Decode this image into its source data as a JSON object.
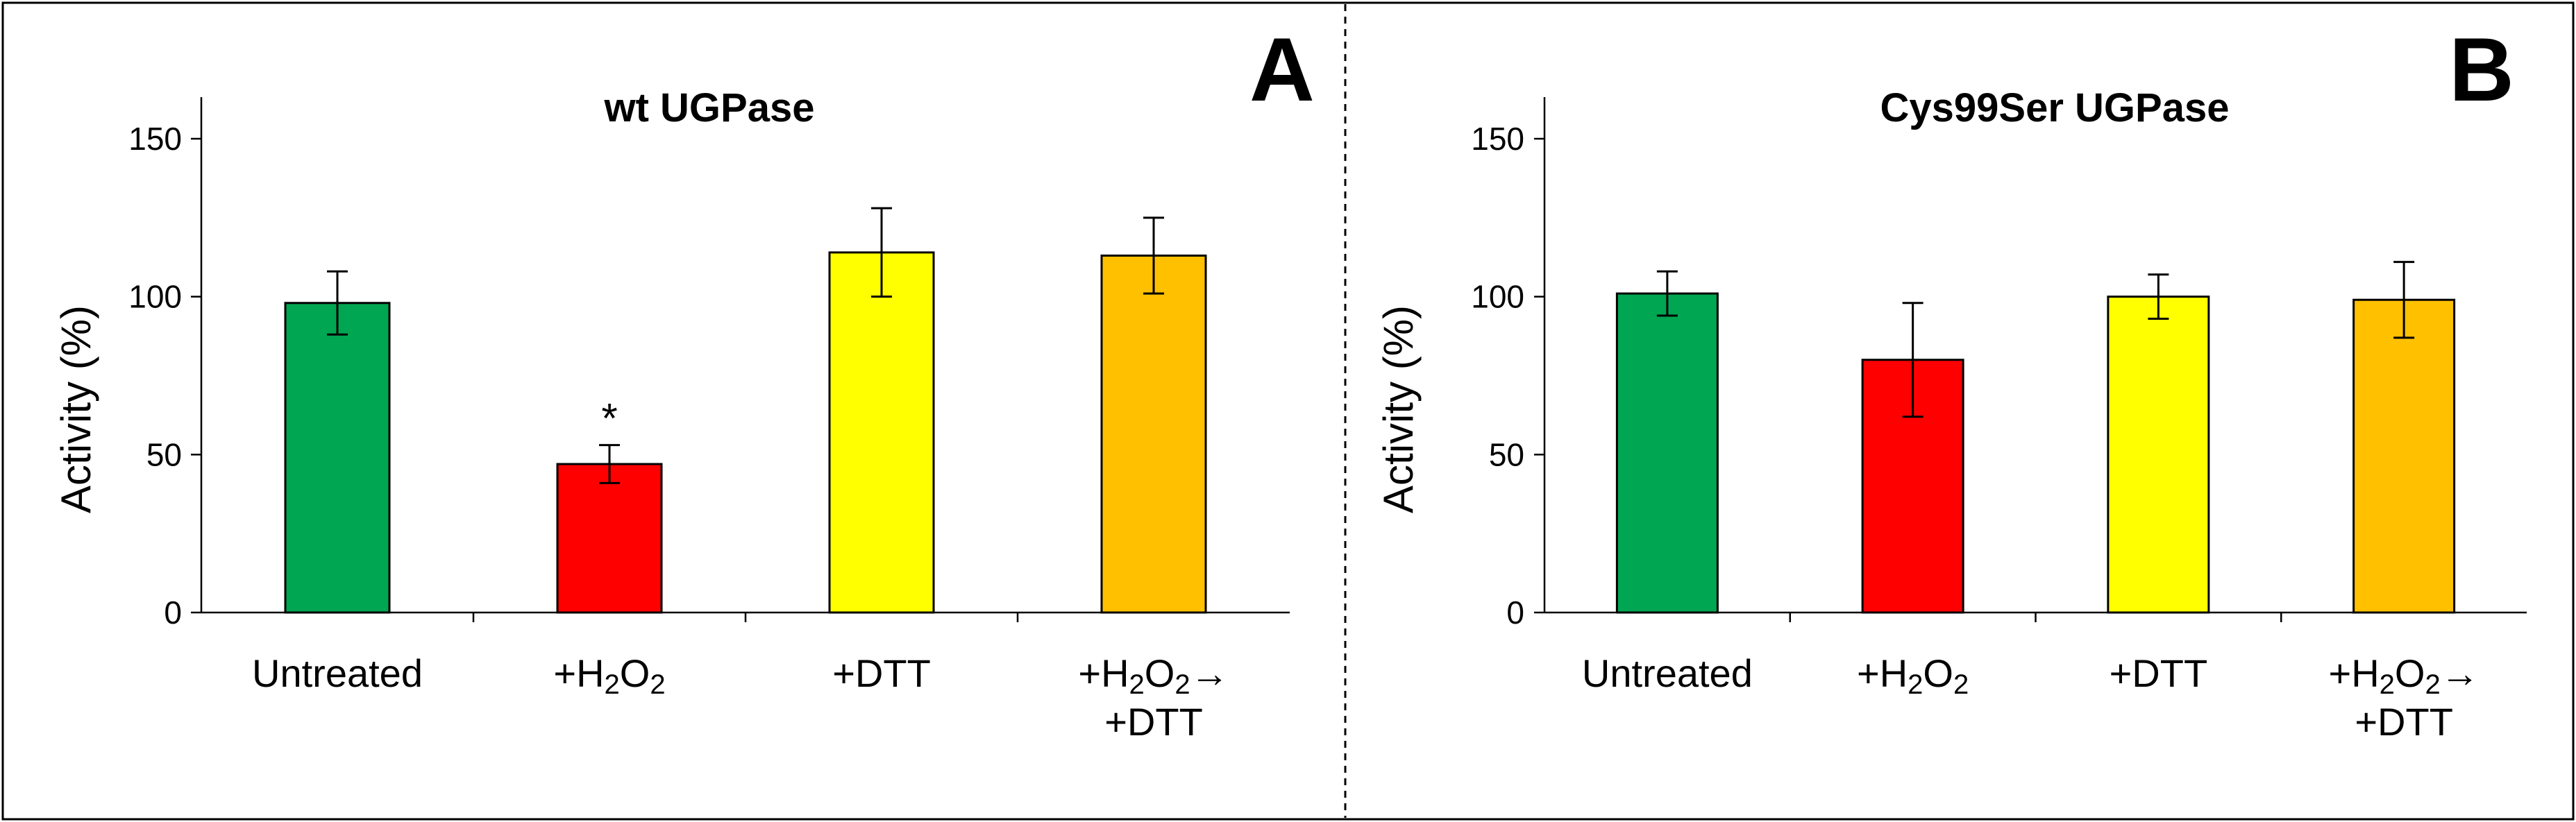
{
  "chart_data": [
    {
      "type": "bar",
      "panel_letter": "A",
      "title": "wt UGPase",
      "ylabel": "Activity (%)",
      "ylim": [
        0,
        150
      ],
      "yticks": [
        "0",
        "50",
        "100",
        "150"
      ],
      "categories": [
        {
          "lines": [
            "Untreated"
          ]
        },
        {
          "lines": [
            "+H2O2"
          ]
        },
        {
          "lines": [
            "+DTT"
          ]
        },
        {
          "lines": [
            "+H2O2→",
            "+DTT"
          ]
        }
      ],
      "values": [
        98,
        47,
        114,
        113
      ],
      "errors": [
        10,
        6,
        14,
        12
      ],
      "colors": [
        "#00a651",
        "#ff0000",
        "#ffff00",
        "#ffc000"
      ],
      "annotations": [
        {
          "category_index": 1,
          "text": "*"
        }
      ]
    },
    {
      "type": "bar",
      "panel_letter": "B",
      "title": "Cys99Ser UGPase",
      "ylabel": "Activity (%)",
      "ylim": [
        0,
        150
      ],
      "yticks": [
        "0",
        "50",
        "100",
        "150"
      ],
      "categories": [
        {
          "lines": [
            "Untreated"
          ]
        },
        {
          "lines": [
            "+H2O2"
          ]
        },
        {
          "lines": [
            "+DTT"
          ]
        },
        {
          "lines": [
            "+H2O2→",
            "+DTT"
          ]
        }
      ],
      "values": [
        101,
        80,
        100,
        99
      ],
      "errors": [
        7,
        18,
        7,
        12
      ],
      "colors": [
        "#00a651",
        "#ff0000",
        "#ffff00",
        "#ffc000"
      ],
      "annotations": []
    }
  ]
}
